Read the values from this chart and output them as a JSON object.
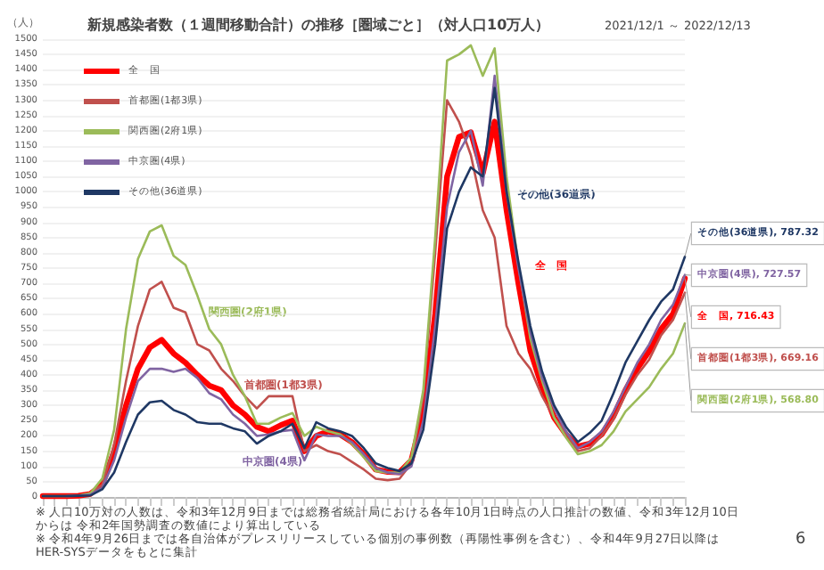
{
  "chart_data": {
    "type": "line",
    "title": "新規感染者数（１週間移動合計）の推移［圏域ごと］（対人口10万人）",
    "subtitle": "2021/12/1 ～ 2022/12/13",
    "ylabel": "（人）",
    "categories": [
      null,
      null,
      null,
      null,
      null,
      null,
      null,
      null,
      null,
      null,
      null,
      null,
      null,
      null,
      null,
      null,
      null,
      null,
      null,
      null,
      null,
      null,
      null,
      null,
      null,
      null,
      null,
      null,
      null,
      null,
      null,
      null,
      null,
      null,
      null,
      null,
      null,
      null,
      null,
      null,
      null,
      null,
      null,
      null,
      null,
      null,
      null,
      null,
      null,
      null,
      null,
      null,
      null,
      null,
      null
    ],
    "series": [
      {
        "name": "全　国",
        "color": "#ff0000",
        "values": [
          3,
          3,
          3,
          4,
          10,
          40,
          150,
          300,
          420,
          490,
          515,
          470,
          440,
          400,
          365,
          350,
          300,
          270,
          230,
          215,
          235,
          250,
          150,
          200,
          215,
          205,
          180,
          140,
          90,
          82,
          81,
          120,
          280,
          600,
          1050,
          1180,
          1195,
          1060,
          1230,
          940,
          700,
          480,
          360,
          260,
          205,
          165,
          175,
          205,
          265,
          350,
          420,
          478,
          550,
          600,
          716.43
        ],
        "value_labels": [
          null,
          null,
          null,
          null,
          null,
          null,
          null,
          null,
          null,
          null,
          null,
          null,
          null,
          null,
          null,
          null,
          null,
          null,
          null,
          null,
          null,
          null,
          null,
          null,
          null,
          null,
          null,
          null,
          null,
          null,
          null,
          null,
          null,
          null,
          null,
          null,
          null,
          null,
          null,
          null,
          null,
          null,
          null,
          null,
          null,
          null,
          null,
          null,
          null,
          null,
          null,
          null,
          null,
          null,
          "全　国, 716.43"
        ]
      },
      {
        "name": "首都圏(1都3県)",
        "color": "#c0504d",
        "values": [
          3,
          3,
          3,
          4,
          12,
          40,
          170,
          380,
          560,
          680,
          705,
          620,
          605,
          500,
          480,
          420,
          380,
          330,
          290,
          330,
          330,
          330,
          150,
          170,
          150,
          140,
          115,
          90,
          60,
          55,
          60,
          110,
          330,
          800,
          1300,
          1230,
          1120,
          940,
          850,
          560,
          470,
          420,
          330,
          260,
          210,
          150,
          160,
          200,
          255,
          335,
          400,
          450,
          530,
          580,
          669.16
        ],
        "value_labels": [
          null,
          null,
          null,
          null,
          null,
          null,
          null,
          null,
          null,
          null,
          null,
          null,
          null,
          null,
          null,
          null,
          null,
          null,
          null,
          null,
          null,
          null,
          null,
          null,
          null,
          null,
          null,
          null,
          null,
          null,
          null,
          null,
          null,
          null,
          null,
          null,
          null,
          null,
          null,
          null,
          null,
          null,
          null,
          null,
          null,
          null,
          null,
          null,
          null,
          null,
          null,
          null,
          null,
          null,
          "首都圏(1都3県), 669.16"
        ]
      },
      {
        "name": "関西圏(2府1県)",
        "color": "#9bbb59",
        "values": [
          3,
          3,
          3,
          4,
          12,
          60,
          220,
          550,
          780,
          870,
          890,
          790,
          760,
          660,
          550,
          500,
          400,
          330,
          240,
          240,
          260,
          275,
          200,
          230,
          215,
          205,
          175,
          130,
          85,
          80,
          80,
          130,
          350,
          850,
          1430,
          1450,
          1480,
          1380,
          1470,
          1050,
          760,
          520,
          380,
          260,
          195,
          140,
          150,
          170,
          215,
          280,
          320,
          360,
          420,
          470,
          568.8
        ],
        "value_labels": [
          null,
          null,
          null,
          null,
          null,
          null,
          null,
          null,
          null,
          null,
          null,
          null,
          null,
          null,
          null,
          null,
          null,
          null,
          null,
          null,
          null,
          null,
          null,
          null,
          null,
          null,
          null,
          null,
          null,
          null,
          null,
          null,
          null,
          null,
          null,
          null,
          null,
          null,
          null,
          null,
          null,
          null,
          null,
          null,
          null,
          null,
          null,
          null,
          null,
          null,
          null,
          null,
          null,
          null,
          "関西圏(2府1県), 568.80"
        ]
      },
      {
        "name": "中京圏(4県)",
        "color": "#8064a2",
        "values": [
          null,
          null,
          3,
          4,
          8,
          30,
          120,
          260,
          380,
          420,
          420,
          410,
          420,
          390,
          340,
          320,
          270,
          240,
          200,
          205,
          215,
          220,
          120,
          205,
          200,
          200,
          180,
          140,
          95,
          80,
          75,
          100,
          250,
          560,
          950,
          1130,
          1200,
          1020,
          1380,
          1000,
          750,
          540,
          390,
          290,
          215,
          160,
          180,
          215,
          280,
          360,
          440,
          500,
          580,
          630,
          727.57
        ],
        "value_labels": [
          null,
          null,
          null,
          null,
          null,
          null,
          null,
          null,
          null,
          null,
          null,
          null,
          null,
          null,
          null,
          null,
          null,
          null,
          null,
          null,
          null,
          null,
          null,
          null,
          null,
          null,
          null,
          null,
          null,
          null,
          null,
          null,
          null,
          null,
          null,
          null,
          null,
          null,
          null,
          null,
          null,
          null,
          null,
          null,
          null,
          null,
          null,
          null,
          null,
          null,
          null,
          null,
          null,
          null,
          "中京圏(4県), 727.57"
        ]
      },
      {
        "name": "その他(36道県)",
        "color": "#1f3864",
        "values": [
          3,
          3,
          3,
          4,
          5,
          25,
          80,
          180,
          270,
          310,
          315,
          285,
          270,
          245,
          240,
          240,
          225,
          215,
          175,
          200,
          215,
          240,
          160,
          245,
          225,
          215,
          200,
          160,
          110,
          95,
          85,
          110,
          220,
          500,
          880,
          1000,
          1080,
          1050,
          1340,
          1000,
          770,
          560,
          410,
          300,
          230,
          180,
          210,
          250,
          340,
          440,
          510,
          580,
          640,
          680,
          787.32
        ],
        "value_labels": [
          null,
          null,
          null,
          null,
          null,
          null,
          null,
          null,
          null,
          null,
          null,
          null,
          null,
          null,
          null,
          null,
          null,
          null,
          null,
          null,
          null,
          null,
          null,
          null,
          null,
          null,
          null,
          null,
          null,
          null,
          null,
          null,
          null,
          null,
          null,
          null,
          null,
          null,
          null,
          null,
          null,
          null,
          null,
          null,
          null,
          null,
          null,
          null,
          null,
          null,
          null,
          null,
          null,
          null,
          "その他(36道県), 787.32"
        ]
      }
    ],
    "ylim": [
      0,
      1500
    ],
    "yticks": [
      0,
      50,
      100,
      150,
      200,
      250,
      300,
      350,
      400,
      450,
      500,
      550,
      600,
      650,
      700,
      750,
      800,
      850,
      900,
      950,
      1000,
      1050,
      1100,
      1150,
      1200,
      1250,
      1300,
      1350,
      1400,
      1450,
      1500
    ],
    "grid": "y",
    "legend": "top left",
    "marker": "none",
    "line_style": "solid",
    "annotations": [
      "関西圏(2府1県)",
      "首都圏(1都3県)",
      "中京圏(4県)",
      "その他(36道県)",
      "全　国",
      "※ 人口10万対の人数は、令和3年12月9日までは総務省統計局における各年10月1日時点の人口推計の数値、令和3年12月10日からは 令和2年国勢調査の数値により算出している",
      "※ 令和4年9月26日までは各自治体がプレスリリースしている個別の事例数（再陽性事例を含む）、令和4年9月27日以降はHER-SYSデータをもとに集計",
      "6"
    ]
  }
}
